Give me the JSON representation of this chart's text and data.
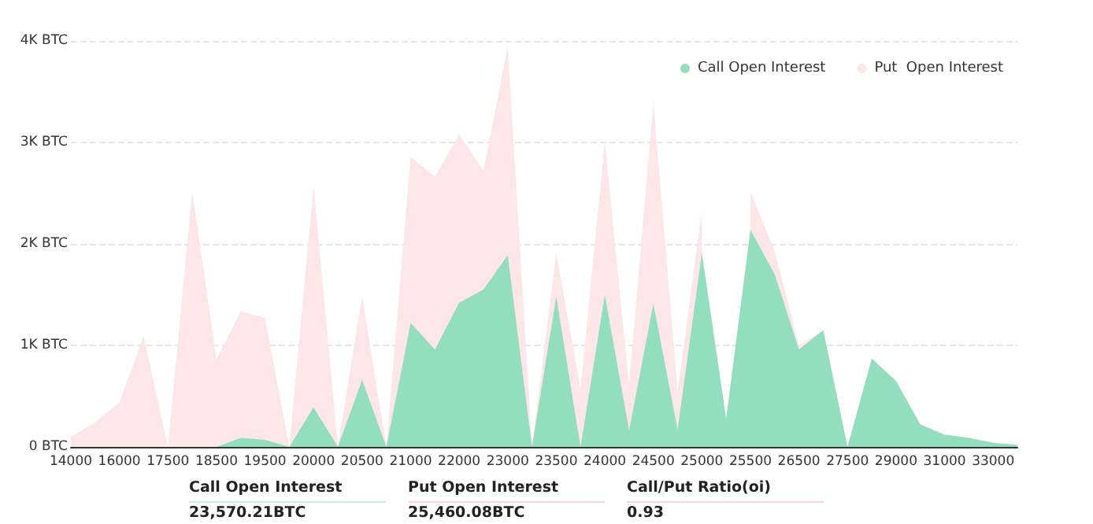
{
  "chart_data": {
    "type": "area",
    "categories": [
      "14000",
      null,
      "16000",
      null,
      "17500",
      null,
      "18500",
      null,
      "19500",
      null,
      "20000",
      null,
      "20500",
      null,
      "21000",
      null,
      "22000",
      null,
      "23000",
      null,
      "23500",
      null,
      "24000",
      null,
      "24500",
      null,
      "25000",
      null,
      "25500",
      null,
      "26500",
      null,
      "27500",
      null,
      "29000",
      null,
      "31000",
      null,
      "33000",
      null
    ],
    "series": [
      {
        "name": "Put  Open Interest",
        "color": "#fce6e9",
        "values": [
          100,
          240,
          440,
          1090,
          0,
          2510,
          860,
          1340,
          1270,
          0,
          2570,
          0,
          1480,
          0,
          2860,
          2660,
          3080,
          2720,
          3940,
          0,
          1910,
          570,
          3010,
          600,
          3390,
          540,
          2330,
          null,
          2510,
          1930,
          1000,
          1150,
          0,
          870,
          650,
          220,
          120,
          90,
          40,
          20
        ]
      },
      {
        "name": "Call Open Interest",
        "color": "#94dec0",
        "values": [
          0,
          0,
          0,
          0,
          0,
          0,
          0,
          90,
          70,
          0,
          390,
          0,
          660,
          0,
          1220,
          960,
          1420,
          1550,
          1890,
          0,
          1480,
          0,
          1500,
          160,
          1410,
          170,
          1910,
          280,
          2140,
          1700,
          960,
          1150,
          0,
          870,
          650,
          220,
          120,
          90,
          40,
          20
        ]
      }
    ],
    "ylim": [
      0,
      4000
    ],
    "yticks": [
      {
        "value": 0,
        "label": "0 BTC"
      },
      {
        "value": 1000,
        "label": "1K BTC"
      },
      {
        "value": 2000,
        "label": "2K BTC"
      },
      {
        "value": 3000,
        "label": "3K BTC"
      },
      {
        "value": 4000,
        "label": "4K BTC"
      }
    ],
    "grid": "y",
    "legend": "top right",
    "marker": "none",
    "annotations": [
      "Call Open Interest",
      "23,570.21BTC",
      "Put Open Interest",
      "25,460.08BTC",
      "Call/Put Ratio(oi)",
      "0.93"
    ]
  }
}
